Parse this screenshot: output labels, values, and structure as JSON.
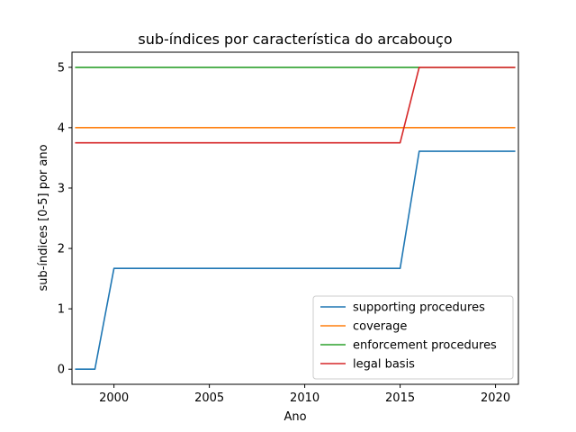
{
  "chart_data": {
    "type": "line",
    "title": "sub-índices por característica do arcabouço",
    "xlabel": "Ano",
    "ylabel": "sub-índices [0-5] por ano",
    "xlim": [
      1997.8,
      2021.2
    ],
    "ylim": [
      -0.25,
      5.25
    ],
    "xticks": [
      2000,
      2005,
      2010,
      2015,
      2020
    ],
    "yticks": [
      0,
      1,
      2,
      3,
      4,
      5
    ],
    "grid": false,
    "legend_position": "lower-right",
    "x": [
      1998,
      1999,
      2000,
      2001,
      2002,
      2003,
      2004,
      2005,
      2006,
      2007,
      2008,
      2009,
      2010,
      2011,
      2012,
      2013,
      2014,
      2015,
      2016,
      2017,
      2018,
      2019,
      2020,
      2021
    ],
    "series": [
      {
        "name": "supporting procedures",
        "color": "#1f77b4",
        "values": [
          0,
          0,
          1.67,
          1.67,
          1.67,
          1.67,
          1.67,
          1.67,
          1.67,
          1.67,
          1.67,
          1.67,
          1.67,
          1.67,
          1.67,
          1.67,
          1.67,
          1.67,
          3.61,
          3.61,
          3.61,
          3.61,
          3.61,
          3.61
        ]
      },
      {
        "name": "coverage",
        "color": "#ff7f0e",
        "values": [
          4,
          4,
          4,
          4,
          4,
          4,
          4,
          4,
          4,
          4,
          4,
          4,
          4,
          4,
          4,
          4,
          4,
          4,
          4,
          4,
          4,
          4,
          4,
          4
        ]
      },
      {
        "name": "enforcement procedures",
        "color": "#2ca02c",
        "values": [
          5,
          5,
          5,
          5,
          5,
          5,
          5,
          5,
          5,
          5,
          5,
          5,
          5,
          5,
          5,
          5,
          5,
          5,
          5,
          5,
          5,
          5,
          5,
          5
        ]
      },
      {
        "name": "legal basis",
        "color": "#d62728",
        "values": [
          3.75,
          3.75,
          3.75,
          3.75,
          3.75,
          3.75,
          3.75,
          3.75,
          3.75,
          3.75,
          3.75,
          3.75,
          3.75,
          3.75,
          3.75,
          3.75,
          3.75,
          3.75,
          5,
          5,
          5,
          5,
          5,
          5
        ]
      }
    ]
  }
}
